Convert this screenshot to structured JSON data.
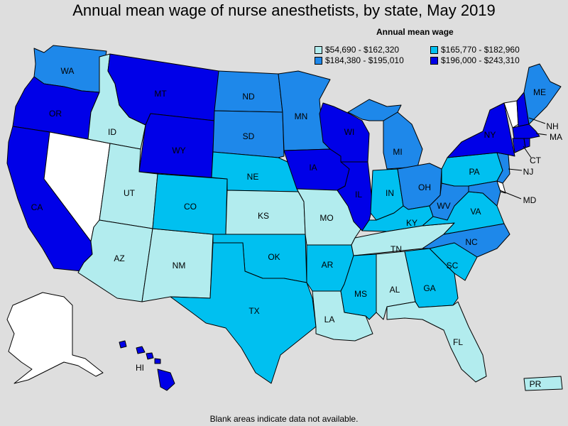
{
  "title": "Annual mean wage of nurse anesthetists, by state, May 2019",
  "legend": {
    "title": "Annual mean wage",
    "items": [
      {
        "label": "$54,690 - $162,320",
        "color": "#b2ecee"
      },
      {
        "label": "$165,770 - $182,960",
        "color": "#00c0f0"
      },
      {
        "label": "$184,380 - $195,010",
        "color": "#1e88ea"
      },
      {
        "label": "$196,000 - $243,310",
        "color": "#0000e8"
      }
    ],
    "blank_color": "#ffffff"
  },
  "note": "Blank areas indicate data not available.",
  "states": {
    "WA": 2,
    "OR": 3,
    "CA": 3,
    "NV": -1,
    "ID": 0,
    "MT": 3,
    "WY": 3,
    "UT": 0,
    "AZ": 0,
    "NM": 0,
    "CO": 1,
    "ND": 2,
    "SD": 2,
    "NE": 1,
    "KS": 0,
    "OK": 1,
    "TX": 1,
    "MN": 2,
    "IA": 3,
    "MO": 0,
    "AR": 1,
    "LA": 0,
    "WI": 3,
    "IL": 3,
    "MI": 2,
    "IN": 1,
    "OH": 2,
    "KY": 1,
    "TN": 0,
    "MS": 1,
    "AL": 0,
    "GA": 1,
    "FL": 0,
    "SC": 1,
    "NC": 2,
    "VA": 1,
    "WV": 2,
    "PA": 1,
    "NY": 3,
    "VT": -1,
    "NH": 3,
    "ME": 2,
    "MA": 3,
    "CT": 3,
    "RI": 3,
    "NJ": 2,
    "DE": -1,
    "MD": 2,
    "AK": -1,
    "HI": 3,
    "PR": 0
  },
  "labels": {
    "WA": "WA",
    "OR": "OR",
    "CA": "CA",
    "ID": "ID",
    "MT": "MT",
    "WY": "WY",
    "UT": "UT",
    "AZ": "AZ",
    "NM": "NM",
    "CO": "CO",
    "ND": "ND",
    "SD": "SD",
    "NE": "NE",
    "KS": "KS",
    "OK": "OK",
    "TX": "TX",
    "MN": "MN",
    "IA": "IA",
    "MO": "MO",
    "AR": "AR",
    "LA": "LA",
    "WI": "WI",
    "IL": "IL",
    "MI": "MI",
    "IN": "IN",
    "OH": "OH",
    "KY": "KY",
    "TN": "TN",
    "MS": "MS",
    "AL": "AL",
    "GA": "GA",
    "FL": "FL",
    "SC": "SC",
    "NC": "NC",
    "VA": "VA",
    "WV": "WV",
    "PA": "PA",
    "NY": "NY",
    "NH": "NH",
    "ME": "ME",
    "MA": "MA",
    "CT": "CT",
    "NJ": "NJ",
    "MD": "MD",
    "HI": "HI",
    "PR": "PR"
  }
}
